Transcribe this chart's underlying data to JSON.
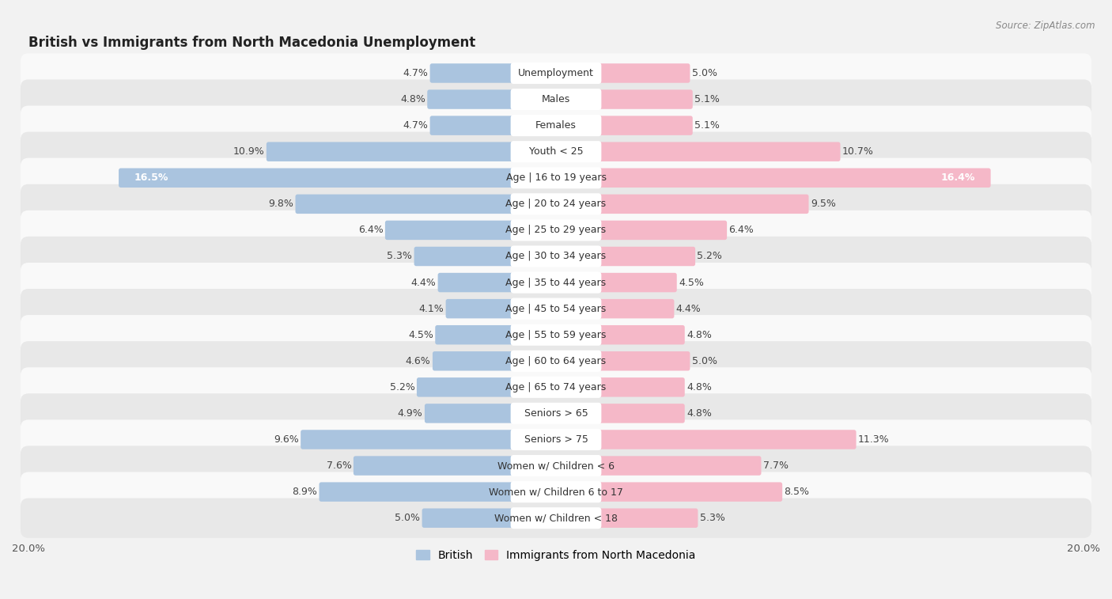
{
  "title": "British vs Immigrants from North Macedonia Unemployment",
  "source": "Source: ZipAtlas.com",
  "categories": [
    "Unemployment",
    "Males",
    "Females",
    "Youth < 25",
    "Age | 16 to 19 years",
    "Age | 20 to 24 years",
    "Age | 25 to 29 years",
    "Age | 30 to 34 years",
    "Age | 35 to 44 years",
    "Age | 45 to 54 years",
    "Age | 55 to 59 years",
    "Age | 60 to 64 years",
    "Age | 65 to 74 years",
    "Seniors > 65",
    "Seniors > 75",
    "Women w/ Children < 6",
    "Women w/ Children 6 to 17",
    "Women w/ Children < 18"
  ],
  "british": [
    4.7,
    4.8,
    4.7,
    10.9,
    16.5,
    9.8,
    6.4,
    5.3,
    4.4,
    4.1,
    4.5,
    4.6,
    5.2,
    4.9,
    9.6,
    7.6,
    8.9,
    5.0
  ],
  "immigrants": [
    5.0,
    5.1,
    5.1,
    10.7,
    16.4,
    9.5,
    6.4,
    5.2,
    4.5,
    4.4,
    4.8,
    5.0,
    4.8,
    4.8,
    11.3,
    7.7,
    8.5,
    5.3
  ],
  "british_color": "#aac4df",
  "immigrants_color": "#f5b8c8",
  "british_color_dark": "#5a9fd4",
  "immigrants_color_dark": "#f07090",
  "bg_color": "#f2f2f2",
  "row_color_light": "#f9f9f9",
  "row_color_dark": "#e8e8e8",
  "max_val": 20.0,
  "bar_height": 0.58,
  "label_fontsize": 9.0,
  "value_fontsize": 9.0,
  "title_fontsize": 12,
  "source_fontsize": 8.5
}
